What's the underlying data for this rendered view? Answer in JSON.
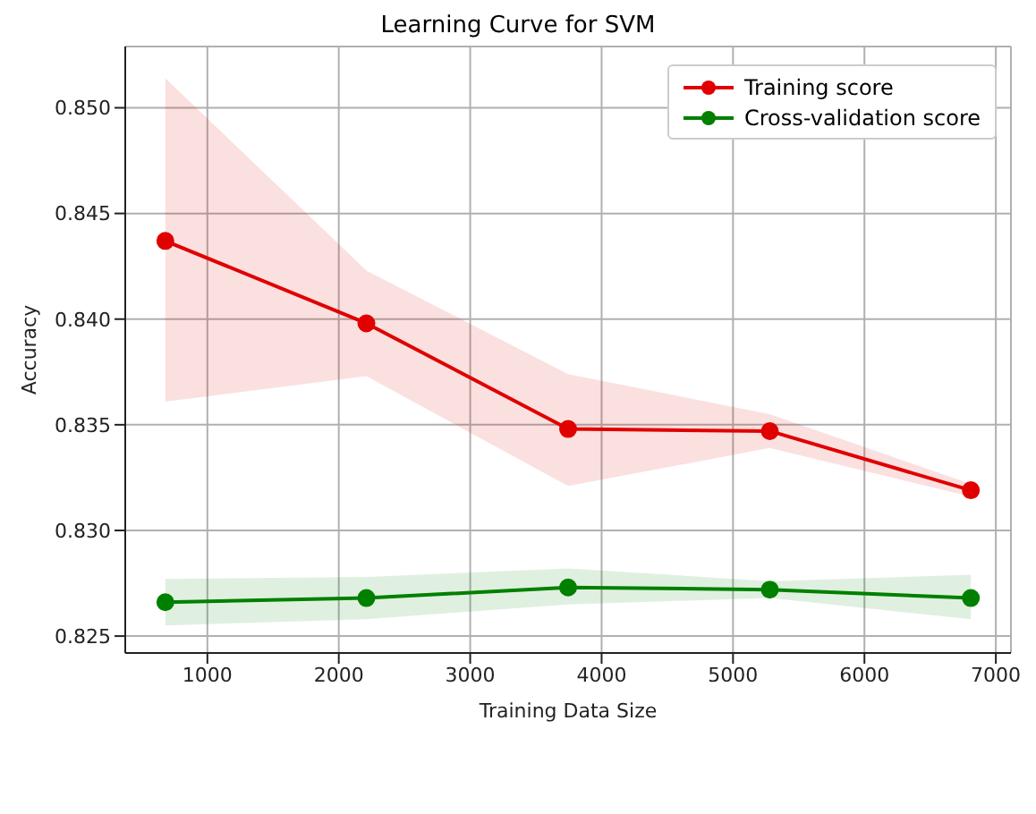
{
  "chart_data": {
    "type": "line",
    "title": "Learning Curve for SVM",
    "xlabel": "Training Data Size",
    "ylabel": "Accuracy",
    "x": [
      680,
      2210,
      3745,
      5280,
      6810
    ],
    "series": [
      {
        "name": "Training score",
        "color": "#e00000",
        "values": [
          0.8437,
          0.8398,
          0.8348,
          0.8347,
          0.8319
        ],
        "lower": [
          0.8361,
          0.8373,
          0.8321,
          0.8339,
          0.8316
        ],
        "upper": [
          0.8514,
          0.8423,
          0.8374,
          0.8355,
          0.8322
        ]
      },
      {
        "name": "Cross-validation score",
        "color": "#008000",
        "values": [
          0.8266,
          0.8268,
          0.8273,
          0.8272,
          0.8268
        ],
        "lower": [
          0.8255,
          0.8258,
          0.8265,
          0.8268,
          0.8258
        ],
        "upper": [
          0.8277,
          0.8278,
          0.8282,
          0.8276,
          0.8279
        ]
      }
    ],
    "xlim": [
      375,
      7115
    ],
    "xticks": [
      1000,
      2000,
      3000,
      4000,
      5000,
      6000,
      7000
    ],
    "ylim": [
      0.8242,
      0.8529
    ],
    "yticks": [
      0.825,
      {
        "value": 0.83,
        "label": "0.830"
      },
      0.835,
      {
        "value": 0.84,
        "label": "0.840"
      },
      0.845,
      {
        "value": 0.85,
        "label": "0.850"
      }
    ],
    "grid": true,
    "legend": "top right",
    "marker": "circle",
    "line_style": "solid"
  }
}
